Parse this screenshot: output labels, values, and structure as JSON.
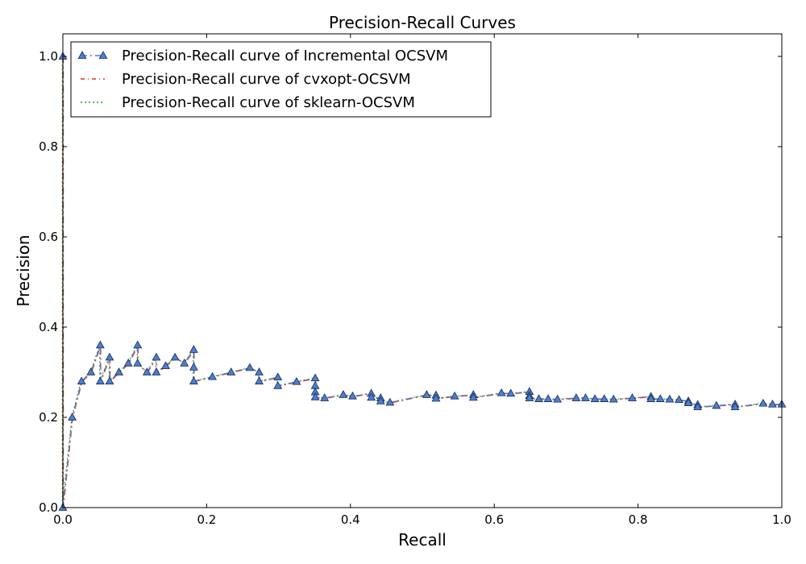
{
  "chart_data": {
    "type": "line",
    "title": "Precision-Recall Curves",
    "xlabel": "Recall",
    "ylabel": "Precision",
    "xlim": [
      0.0,
      1.0
    ],
    "ylim": [
      0.0,
      1.05
    ],
    "xticks": [
      "0.0",
      "0.2",
      "0.4",
      "0.6",
      "0.8",
      "1.0"
    ],
    "yticks": [
      "0.0",
      "0.2",
      "0.4",
      "0.6",
      "0.8",
      "1.0"
    ],
    "grid": false,
    "legend_position": "top-left",
    "series": [
      {
        "name": "Precision-Recall curve of Incremental OCSVM",
        "color": "#4a7fd4",
        "line_style": "dashdot",
        "marker": "triangle",
        "x": [
          0.0,
          0.0,
          0.013,
          0.026,
          0.039,
          0.052,
          0.052,
          0.065,
          0.065,
          0.078,
          0.091,
          0.104,
          0.104,
          0.117,
          0.13,
          0.13,
          0.143,
          0.156,
          0.169,
          0.182,
          0.182,
          0.182,
          0.208,
          0.234,
          0.26,
          0.273,
          0.273,
          0.299,
          0.299,
          0.325,
          0.351,
          0.351,
          0.351,
          0.351,
          0.364,
          0.39,
          0.403,
          0.429,
          0.429,
          0.442,
          0.442,
          0.455,
          0.506,
          0.519,
          0.519,
          0.545,
          0.571,
          0.571,
          0.61,
          0.623,
          0.649,
          0.649,
          0.649,
          0.662,
          0.675,
          0.688,
          0.714,
          0.727,
          0.74,
          0.753,
          0.766,
          0.792,
          0.818,
          0.818,
          0.831,
          0.844,
          0.857,
          0.87,
          0.87,
          0.883,
          0.883,
          0.909,
          0.935,
          0.935,
          0.974,
          0.987,
          1.0
        ],
        "y": [
          1.0,
          0.0,
          0.2,
          0.28,
          0.3,
          0.36,
          0.28,
          0.333,
          0.28,
          0.3,
          0.32,
          0.36,
          0.32,
          0.3,
          0.333,
          0.3,
          0.314,
          0.333,
          0.32,
          0.35,
          0.311,
          0.28,
          0.29,
          0.3,
          0.31,
          0.3,
          0.28,
          0.289,
          0.27,
          0.279,
          0.287,
          0.27,
          0.256,
          0.245,
          0.243,
          0.25,
          0.247,
          0.253,
          0.244,
          0.243,
          0.236,
          0.233,
          0.25,
          0.249,
          0.242,
          0.247,
          0.25,
          0.244,
          0.254,
          0.253,
          0.257,
          0.248,
          0.243,
          0.241,
          0.241,
          0.24,
          0.243,
          0.243,
          0.241,
          0.241,
          0.24,
          0.243,
          0.246,
          0.241,
          0.241,
          0.24,
          0.239,
          0.236,
          0.232,
          0.228,
          0.223,
          0.226,
          0.229,
          0.223,
          0.231,
          0.229,
          0.229
        ]
      },
      {
        "name": "Precision-Recall curve of cvxopt-OCSVM",
        "color": "#e8342a",
        "line_style": "dashdot",
        "marker": "none"
      },
      {
        "name": "Precision-Recall curve of sklearn-OCSVM",
        "color": "#2ca02c",
        "line_style": "dotted",
        "marker": "none"
      }
    ]
  }
}
